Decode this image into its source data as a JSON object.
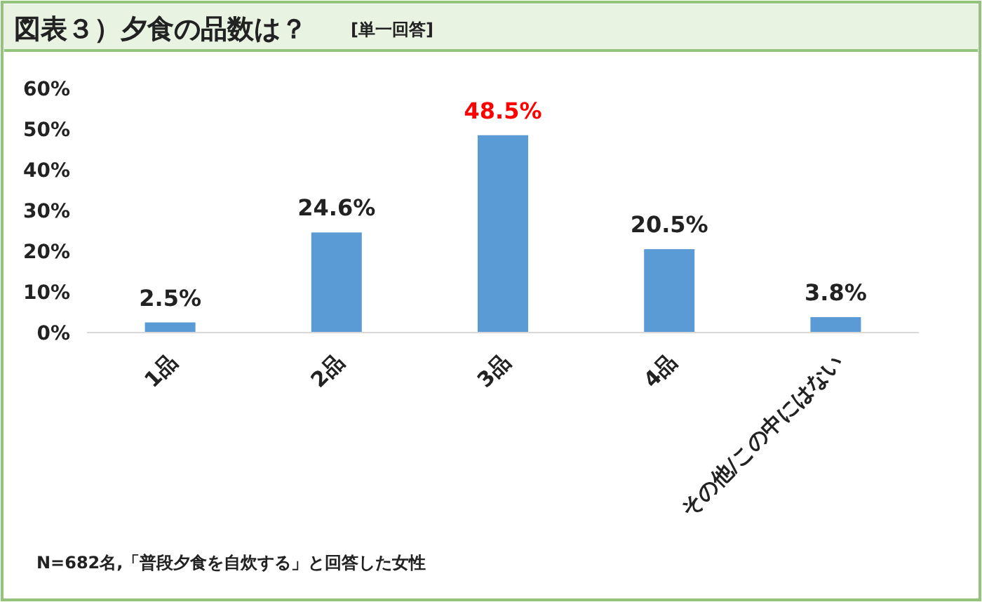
{
  "chart_data": {
    "type": "bar",
    "title": "図表３）夕食の品数は？",
    "subtitle": "[単一回答]",
    "categories": [
      "1品",
      "2品",
      "3品",
      "4品",
      "その他/この中にはない"
    ],
    "values": [
      2.5,
      24.6,
      48.5,
      20.5,
      3.8
    ],
    "value_labels": [
      "2.5%",
      "24.6%",
      "48.5%",
      "20.5%",
      "3.8%"
    ],
    "color": "#5b9bd5",
    "ylim": [
      0,
      60
    ],
    "yticks": [
      {
        "value": 0,
        "label": "0%"
      },
      {
        "value": 10,
        "label": "10%"
      },
      {
        "value": 20,
        "label": "20%"
      },
      {
        "value": 30,
        "label": "30%"
      },
      {
        "value": 40,
        "label": "40%"
      },
      {
        "value": 50,
        "label": "50%"
      },
      {
        "value": 60,
        "label": "60%"
      }
    ],
    "grid": false,
    "annotations": [
      "N=682名,「普段夕食を自炊する」と回答した女性"
    ]
  }
}
